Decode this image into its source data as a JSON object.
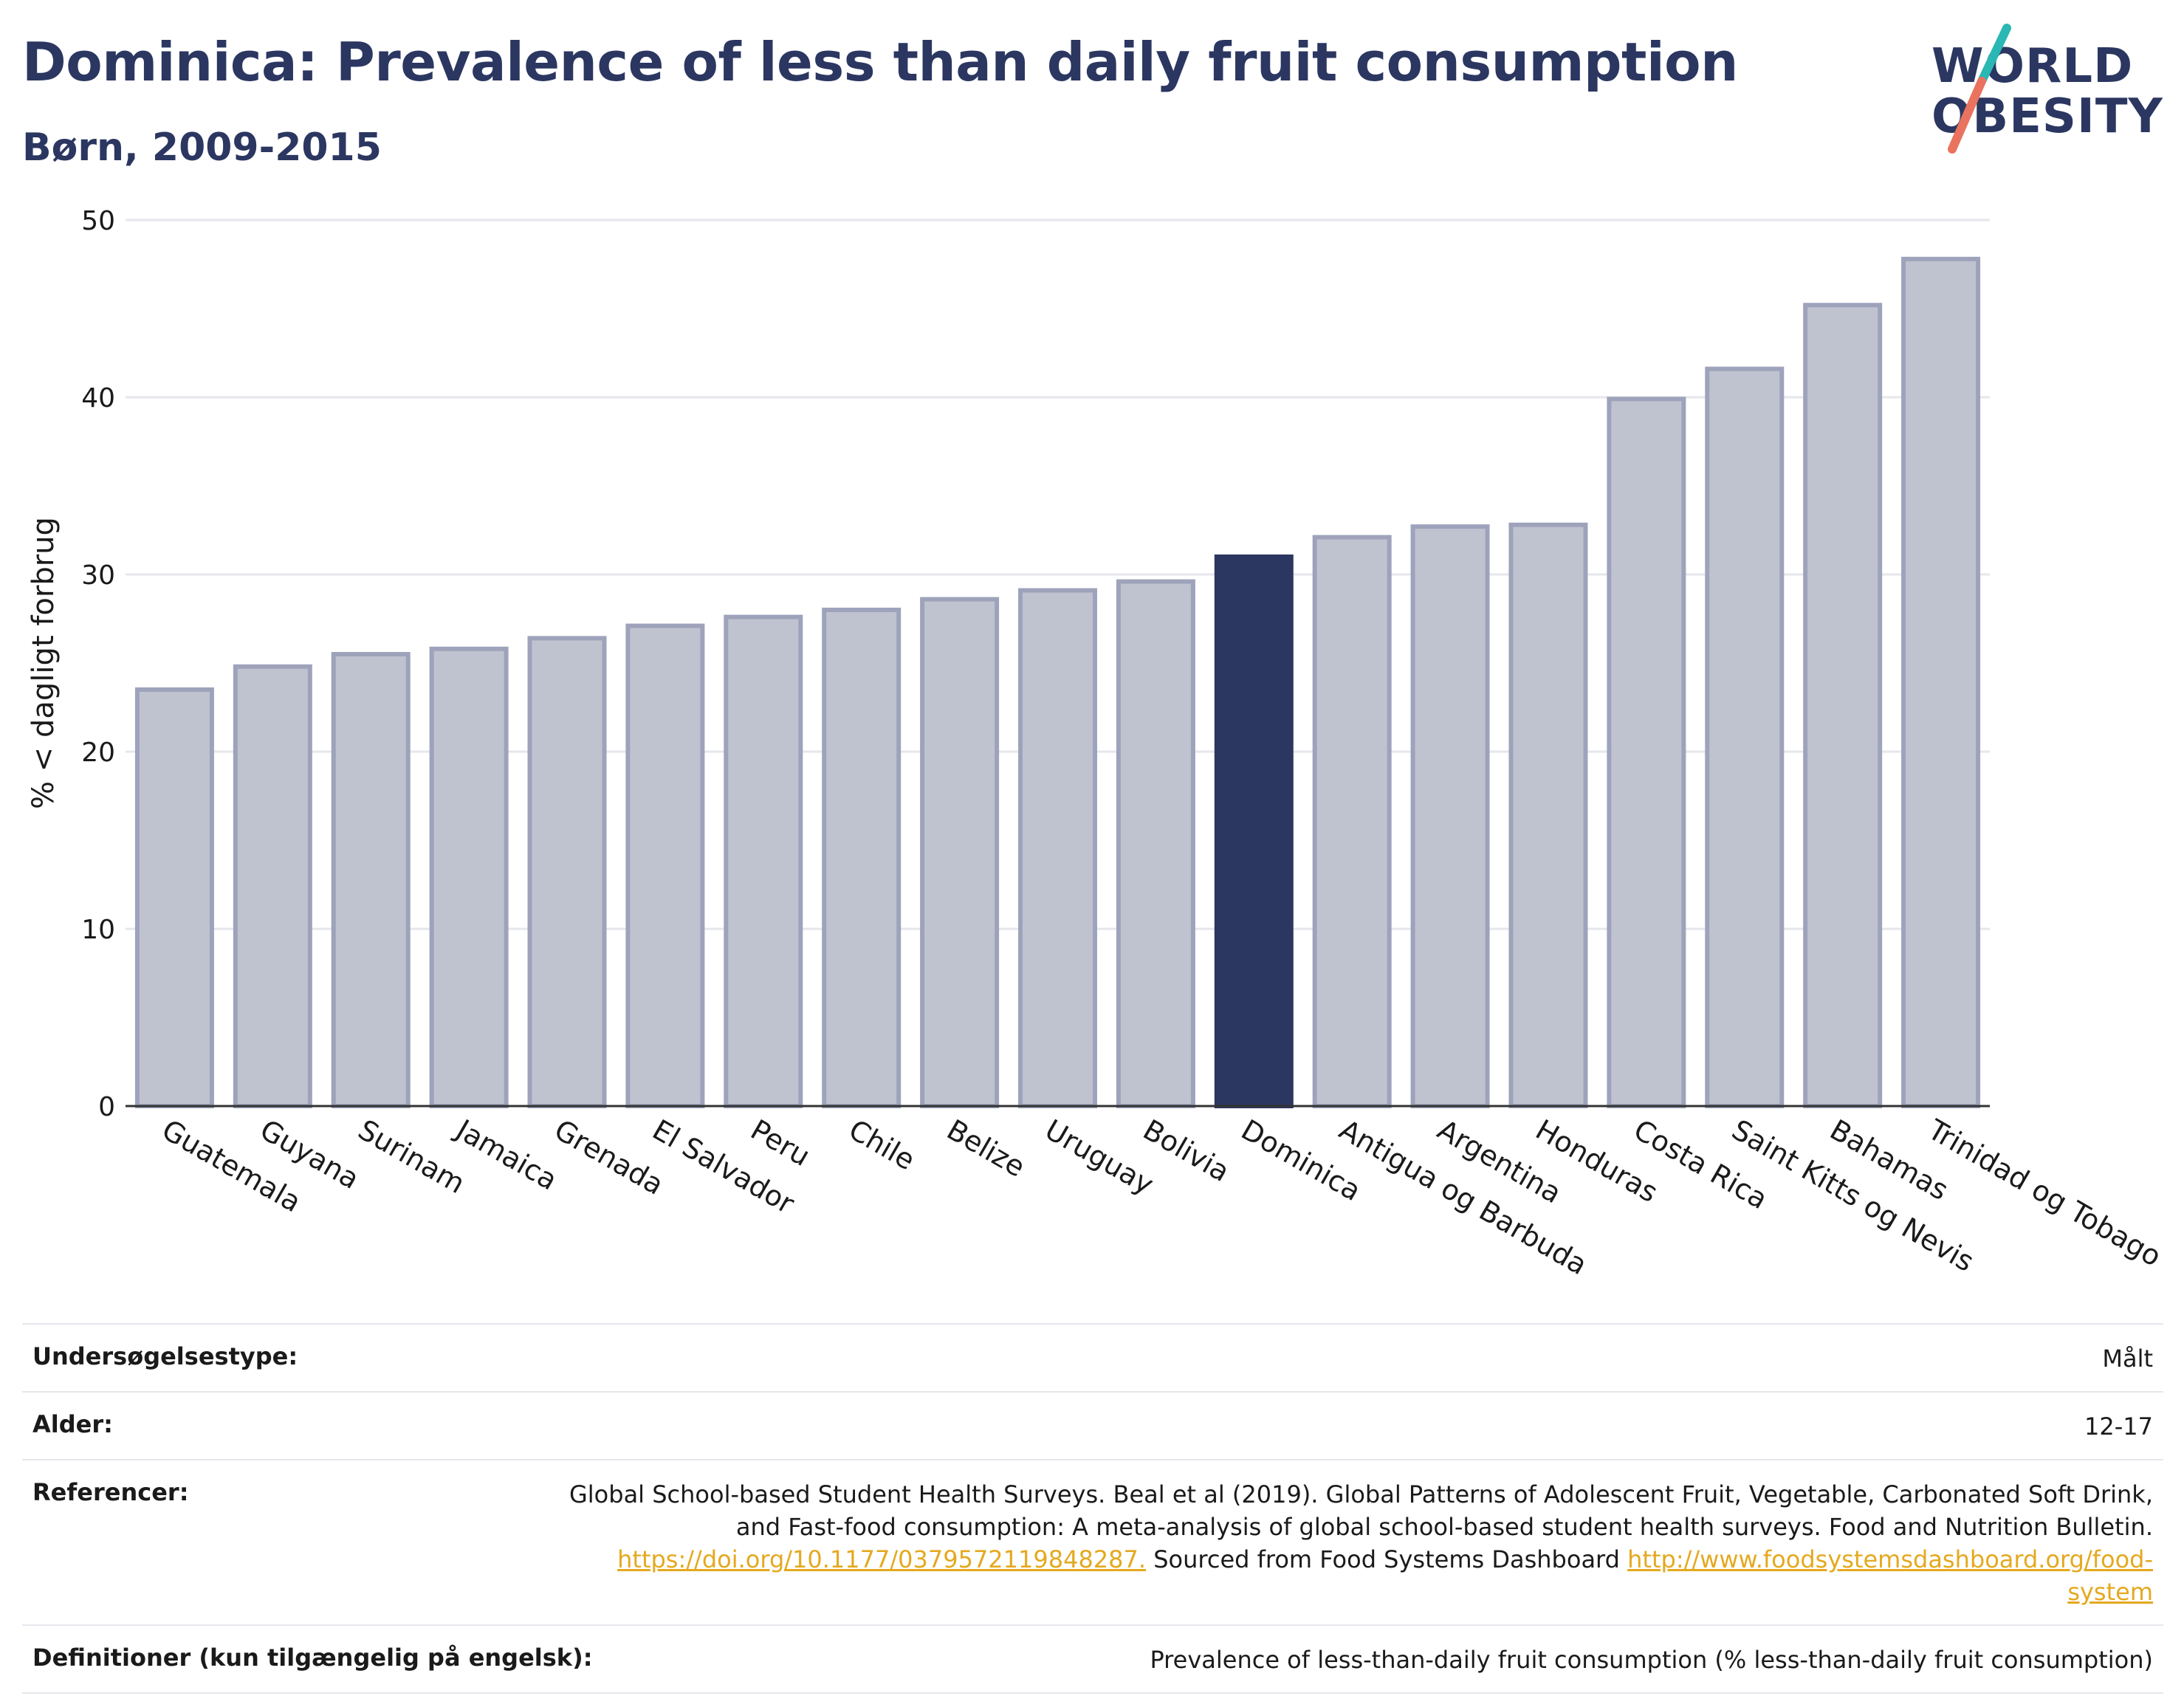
{
  "header": {
    "title": "Dominica: Prevalence of less than daily fruit consumption",
    "subtitle": "Børn, 2009-2015"
  },
  "logo": {
    "line1": "WORLD",
    "line2": "OBESITY"
  },
  "colors": {
    "highlight": "#2b3761",
    "bar_fill": "#bfc3d0",
    "bar_stroke": "#9ea3bb",
    "grid": "#e6e7ec",
    "link": "#e4a91f",
    "logo_slash_teal": "#2bb7b3",
    "logo_slash_coral": "#e9735f"
  },
  "chart_data": {
    "type": "bar",
    "ylabel": "% < dagligt forbrug",
    "xlabel": "",
    "ylim": [
      0,
      50
    ],
    "yticks": [
      0,
      10,
      20,
      30,
      40,
      50
    ],
    "grid": true,
    "highlight": "Dominica",
    "categories": [
      "Guatemala",
      "Guyana",
      "Surinam",
      "Jamaica",
      "Grenada",
      "El Salvador",
      "Peru",
      "Chile",
      "Belize",
      "Uruguay",
      "Bolivia",
      "Dominica",
      "Antigua og Barbuda",
      "Argentina",
      "Honduras",
      "Costa Rica",
      "Saint Kitts og Nevis",
      "Bahamas",
      "Trinidad og Tobago"
    ],
    "values": [
      23.5,
      24.8,
      25.5,
      25.8,
      26.4,
      27.1,
      27.6,
      28.0,
      28.6,
      29.1,
      29.6,
      31.0,
      32.1,
      32.7,
      32.8,
      39.9,
      41.6,
      45.2,
      47.8
    ]
  },
  "info": {
    "rows": [
      {
        "label": "Undersøgelsestype:",
        "value": "Målt"
      },
      {
        "label": "Alder:",
        "value": "12-17"
      }
    ],
    "references": {
      "label": "Referencer:",
      "text1": "Global School-based Student Health Surveys. Beal et al (2019). Global Patterns of Adolescent Fruit, Vegetable, Carbonated Soft Drink,",
      "text2": "and Fast-food consumption: A meta-analysis of global school-based student health surveys. Food and Nutrition Bulletin.",
      "link1": "https://doi.org/10.1177/0379572119848287.",
      "text3": " Sourced from Food Systems Dashboard ",
      "link2a": "http://www.foodsystemsdashboard.org/food-",
      "link2b": "system"
    },
    "definitions": {
      "label": "Definitioner (kun tilgængelig på engelsk):",
      "value": "Prevalence of less-than-daily fruit consumption (% less-than-daily fruit consumption)"
    }
  }
}
